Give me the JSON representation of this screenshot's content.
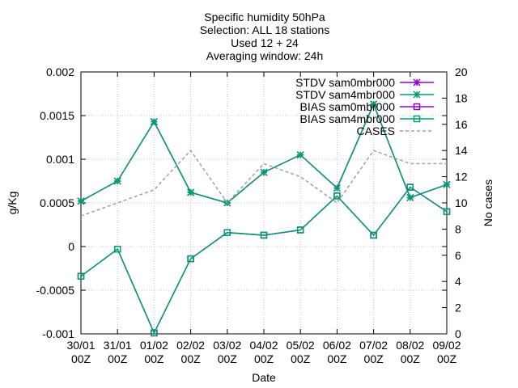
{
  "chart_data": {
    "type": "line",
    "title": [
      "Specific humidity 50hPa",
      "Selection: ALL     18 stations",
      "Used 12 + 24",
      "Averaging window: 24h"
    ],
    "xlabel": "Date",
    "ylabel": "g/Kg",
    "y2label": "No cases",
    "categories": [
      "30/01\n00Z",
      "31/01\n00Z",
      "01/02\n00Z",
      "02/02\n00Z",
      "03/02\n00Z",
      "04/02\n00Z",
      "05/02\n00Z",
      "06/02\n00Z",
      "07/02\n00Z",
      "08/02\n00Z",
      "09/02\n00Z"
    ],
    "ylim": [
      -0.001,
      0.002
    ],
    "y_ticks": [
      "-0.001",
      "-0.0005",
      "0",
      "0.0005",
      "0.001",
      "0.0015",
      "0.002"
    ],
    "y2lim": [
      0,
      20
    ],
    "y2_ticks": [
      "0",
      "2",
      "4",
      "6",
      "8",
      "10",
      "12",
      "14",
      "16",
      "18",
      "20"
    ],
    "grid": true,
    "legend_position": "top-right",
    "series": [
      {
        "name": "STDV sam0mbr000",
        "axis": "y",
        "color": "#9400d3",
        "marker": "star",
        "dash": false,
        "values": [
          0.00052,
          0.00075,
          0.00143,
          0.00062,
          0.0005,
          0.00085,
          0.00105,
          0.00067,
          0.00163,
          0.00056,
          0.00071
        ]
      },
      {
        "name": "STDV sam4mbr000",
        "axis": "y",
        "color": "#009e73",
        "marker": "star",
        "dash": false,
        "values": [
          0.00052,
          0.00075,
          0.00143,
          0.00062,
          0.0005,
          0.00085,
          0.00105,
          0.00067,
          0.00163,
          0.00056,
          0.00071
        ]
      },
      {
        "name": "BIAS sam0mbr000",
        "axis": "y",
        "color": "#9400d3",
        "marker": "square",
        "dash": false,
        "values": [
          -0.00034,
          -3e-05,
          -0.00099,
          -0.00014,
          0.00016,
          0.00013,
          0.00019,
          0.00058,
          0.00013,
          0.00068,
          0.0004
        ]
      },
      {
        "name": "BIAS sam4mbr000",
        "axis": "y",
        "color": "#009e73",
        "marker": "square",
        "dash": false,
        "values": [
          -0.00034,
          -3e-05,
          -0.00099,
          -0.00014,
          0.00016,
          0.00013,
          0.00019,
          0.00058,
          0.00013,
          0.00068,
          0.0004
        ]
      },
      {
        "name": "CASES",
        "axis": "y2",
        "color": "#a0a0a0",
        "marker": "none",
        "dash": true,
        "values": [
          9,
          10,
          11,
          14,
          10,
          13,
          12,
          10,
          14,
          13,
          13
        ]
      }
    ]
  }
}
